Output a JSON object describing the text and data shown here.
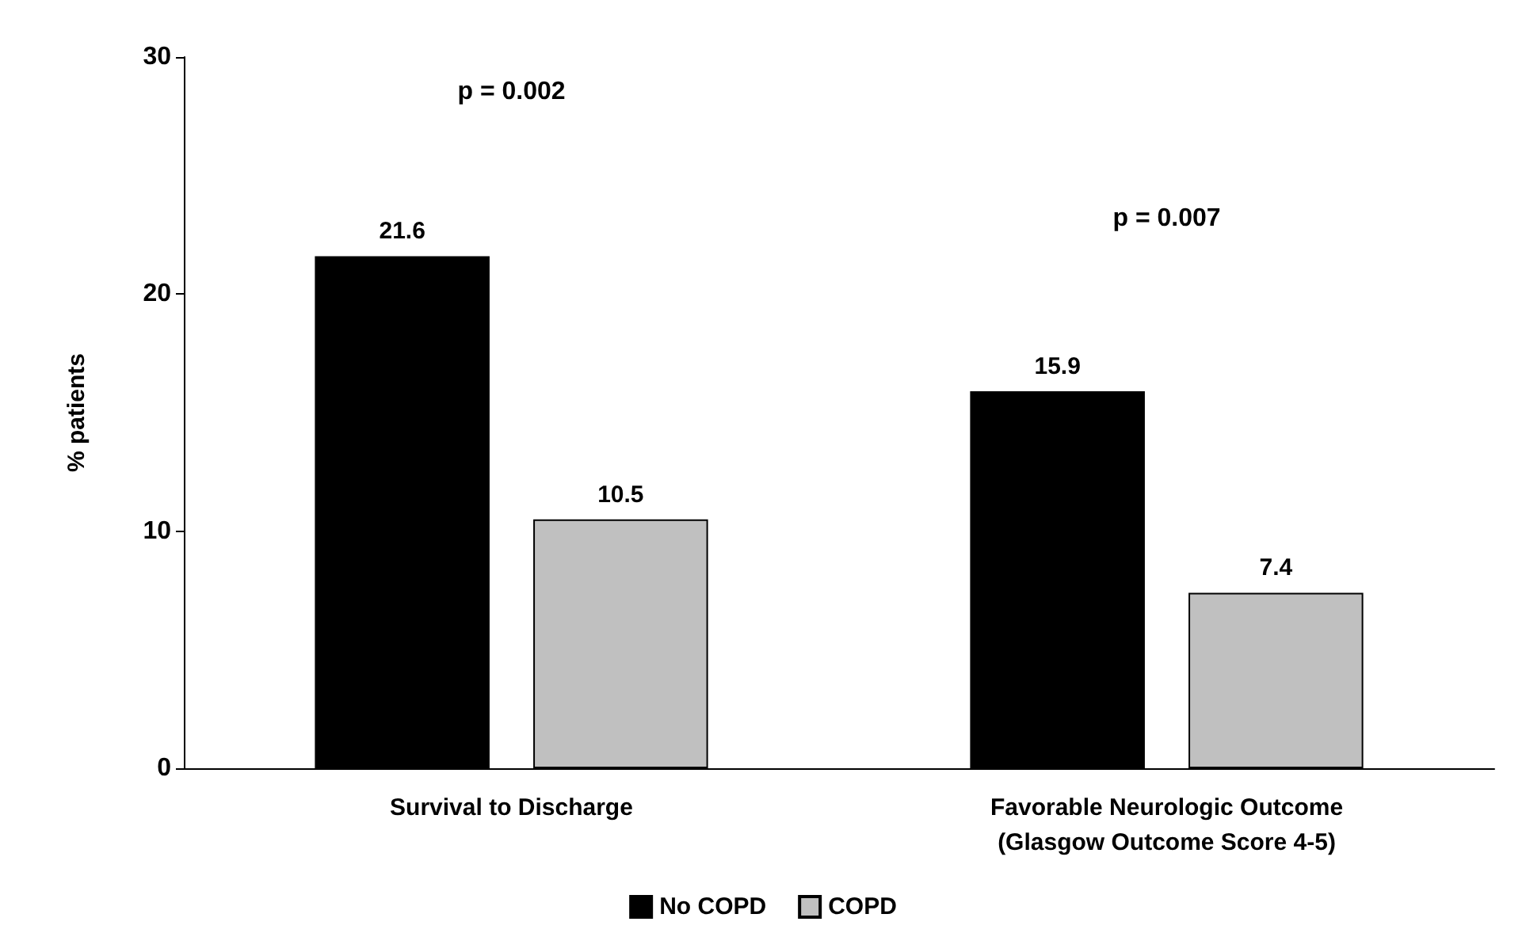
{
  "chart_data": {
    "type": "bar",
    "ylabel": "% patients",
    "categories": [
      "Survival to Discharge",
      "Favorable Neurologic Outcome\n(Glasgow Outcome Score 4-5)"
    ],
    "series": [
      {
        "name": "No COPD",
        "color": "#000000",
        "values": [
          21.6,
          15.9
        ]
      },
      {
        "name": "COPD",
        "color": "#c0c0c0",
        "values": [
          10.5,
          7.4
        ]
      }
    ],
    "ylim": [
      0,
      30
    ],
    "yticks": [
      0,
      10,
      20,
      30
    ],
    "grid": false,
    "legend": "bottom",
    "data_labels": true,
    "annotations": [
      "p = 0.002",
      "p = 0.007"
    ]
  }
}
